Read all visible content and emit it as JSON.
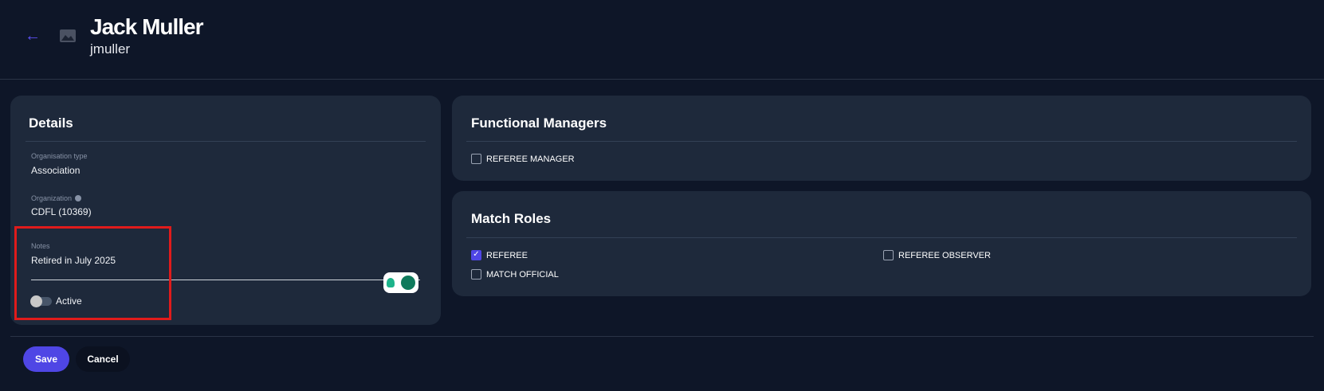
{
  "header": {
    "title": "Jack Muller",
    "username": "jmuller",
    "back_icon": "arrow-left-icon",
    "avatar_icon": "image-placeholder-icon"
  },
  "details": {
    "title": "Details",
    "org_type_label": "Organisation type",
    "org_type_value": "Association",
    "org_label": "Organization",
    "org_value": "CDFL (10369)",
    "notes_label": "Notes",
    "notes_value": "Retired in July 2025",
    "active_label": "Active",
    "active": false
  },
  "functional_managers": {
    "title": "Functional Managers",
    "items": [
      {
        "label": "REFEREE MANAGER",
        "checked": false
      }
    ]
  },
  "match_roles": {
    "title": "Match Roles",
    "items": [
      {
        "label": "REFEREE",
        "checked": true
      },
      {
        "label": "REFEREE OBSERVER",
        "checked": false
      },
      {
        "label": "MATCH OFFICIAL",
        "checked": false
      }
    ]
  },
  "actions": {
    "save": "Save",
    "cancel": "Cancel"
  },
  "colors": {
    "accent": "#4f46e5",
    "background": "#0e1628",
    "card": "#1e293b",
    "highlight": "#e01b1b"
  }
}
